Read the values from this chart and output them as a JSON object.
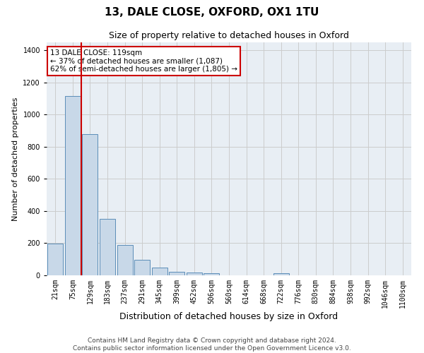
{
  "title1": "13, DALE CLOSE, OXFORD, OX1 1TU",
  "title2": "Size of property relative to detached houses in Oxford",
  "xlabel": "Distribution of detached houses by size in Oxford",
  "ylabel": "Number of detached properties",
  "categories": [
    "21sqm",
    "75sqm",
    "129sqm",
    "183sqm",
    "237sqm",
    "291sqm",
    "345sqm",
    "399sqm",
    "452sqm",
    "506sqm",
    "560sqm",
    "614sqm",
    "668sqm",
    "722sqm",
    "776sqm",
    "830sqm",
    "884sqm",
    "938sqm",
    "992sqm",
    "1046sqm",
    "1100sqm"
  ],
  "bar_heights": [
    197,
    1115,
    880,
    350,
    190,
    95,
    50,
    22,
    18,
    15,
    0,
    0,
    0,
    15,
    0,
    0,
    0,
    0,
    0,
    0,
    0
  ],
  "bar_color": "#c8d8e8",
  "bar_edge_color": "#5b8db8",
  "grid_color": "#cccccc",
  "bg_color": "#e8eef4",
  "vline_color": "#cc0000",
  "annotation_text": "13 DALE CLOSE: 119sqm\n← 37% of detached houses are smaller (1,087)\n62% of semi-detached houses are larger (1,805) →",
  "annotation_box_color": "#cc0000",
  "ylim": [
    0,
    1450
  ],
  "yticks": [
    0,
    200,
    400,
    600,
    800,
    1000,
    1200,
    1400
  ],
  "footer": "Contains HM Land Registry data © Crown copyright and database right 2024.\nContains public sector information licensed under the Open Government Licence v3.0.",
  "title1_fontsize": 11,
  "title2_fontsize": 9,
  "xlabel_fontsize": 9,
  "ylabel_fontsize": 8,
  "tick_fontsize": 7,
  "annotation_fontsize": 7.5,
  "footer_fontsize": 6.5
}
